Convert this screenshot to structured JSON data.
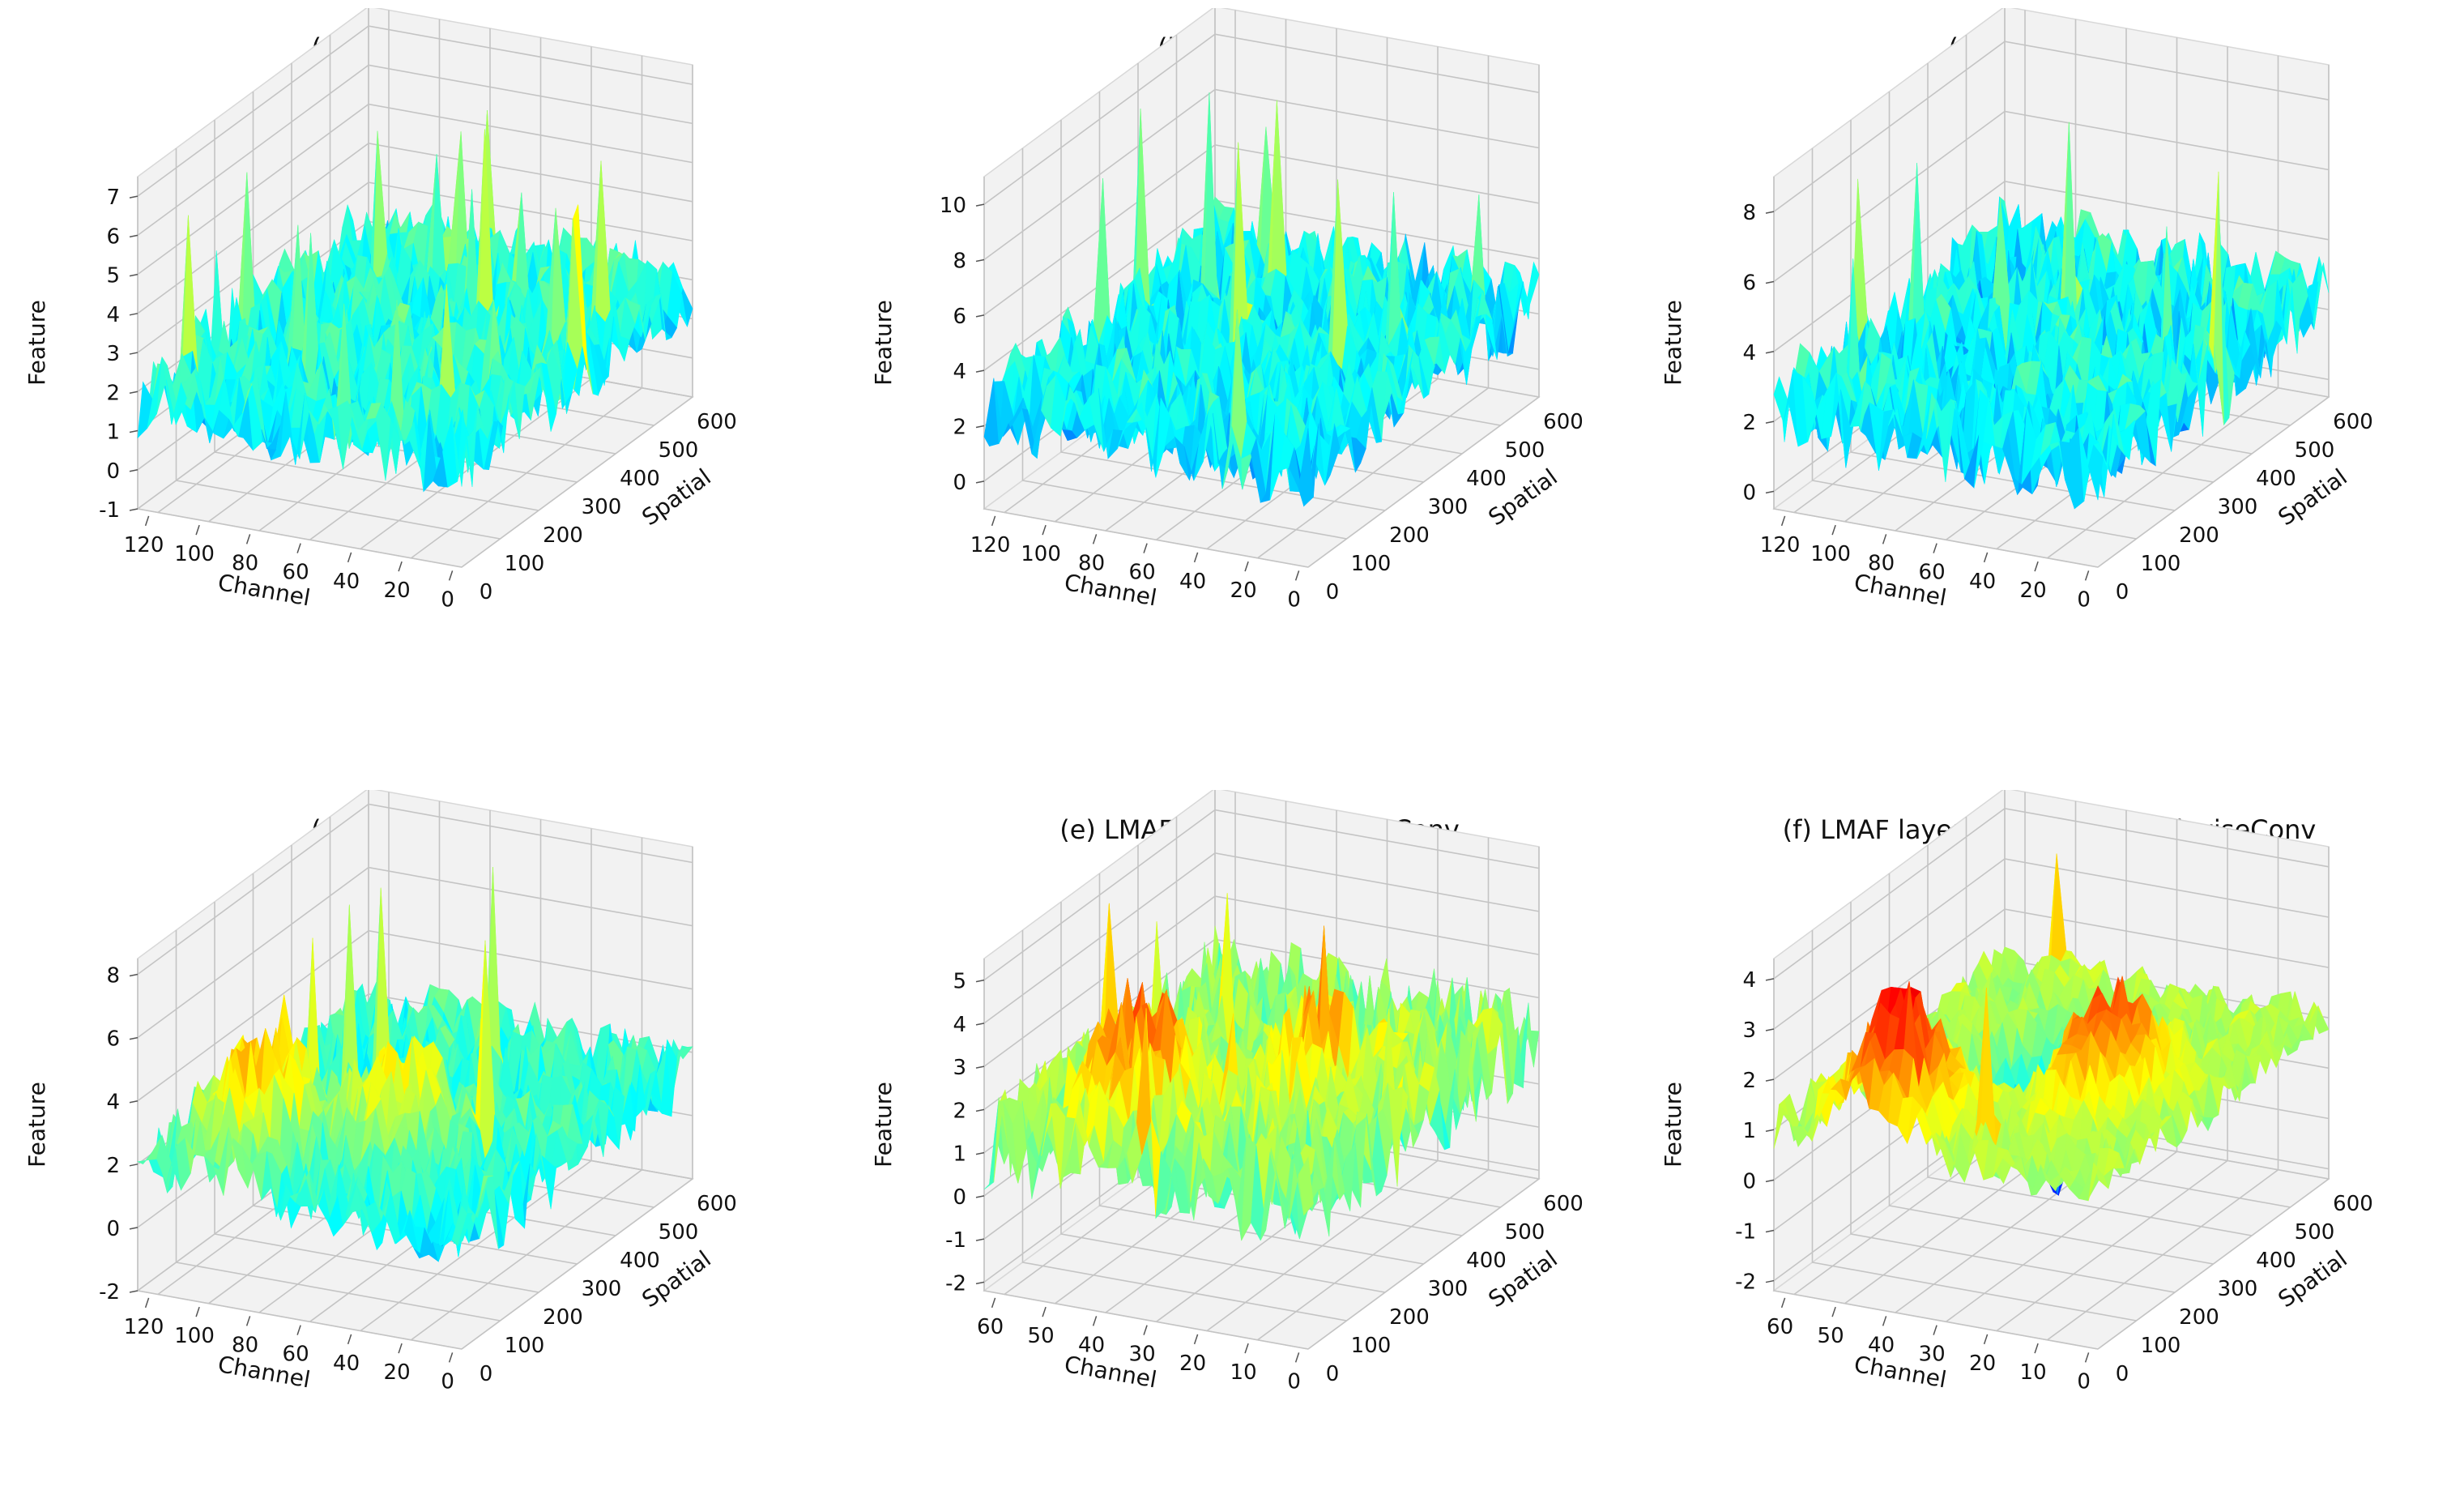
{
  "figure": {
    "colormap": [
      "#00007f",
      "#0000ff",
      "#007fff",
      "#00ffff",
      "#7fff7f",
      "#ffff00",
      "#ff7f00",
      "#ff0000",
      "#7f0000"
    ],
    "pane_color": "#f2f2f2",
    "grid_color": "#c4c4c4"
  },
  "chart_data": [
    {
      "id": "a",
      "type": "surface",
      "title": "(a) LMAF layer1",
      "xlabel": "Channel",
      "ylabel": "Spatial",
      "zlabel": "Feature",
      "x_ticks": [
        "120",
        "100",
        "80",
        "60",
        "40",
        "20",
        "0"
      ],
      "y_ticks": [
        "0",
        "100",
        "200",
        "300",
        "400",
        "500",
        "600"
      ],
      "z_ticks": [
        "-1",
        "0",
        "1",
        "2",
        "3",
        "4",
        "5",
        "6",
        "7"
      ],
      "zlim": [
        -1,
        7.5
      ],
      "x_range": [
        0,
        128
      ],
      "y_range": [
        0,
        600
      ],
      "baseline": 1.8,
      "noise": 1.1,
      "floor": -0.2,
      "spike_max": 7.0,
      "spikes": 20,
      "blobs": []
    },
    {
      "id": "b",
      "type": "surface",
      "title": "(b) LMAF layer2",
      "xlabel": "Channel",
      "ylabel": "Spatial",
      "zlabel": "Feature",
      "x_ticks": [
        "120",
        "100",
        "80",
        "60",
        "40",
        "20",
        "0"
      ],
      "y_ticks": [
        "0",
        "100",
        "200",
        "300",
        "400",
        "500",
        "600"
      ],
      "z_ticks": [
        "0",
        "2",
        "4",
        "6",
        "8",
        "10"
      ],
      "zlim": [
        -1,
        11
      ],
      "x_range": [
        0,
        128
      ],
      "y_range": [
        0,
        600
      ],
      "baseline": 2.6,
      "noise": 1.6,
      "floor": -0.6,
      "spike_max": 10.0,
      "spikes": 10,
      "blobs": []
    },
    {
      "id": "c",
      "type": "surface",
      "title": "(c) LMAF layer3",
      "xlabel": "Channel",
      "ylabel": "Spatial",
      "zlabel": "Feature",
      "x_ticks": [
        "120",
        "100",
        "80",
        "60",
        "40",
        "20",
        "0"
      ],
      "y_ticks": [
        "0",
        "100",
        "200",
        "300",
        "400",
        "500",
        "600"
      ],
      "z_ticks": [
        "0",
        "2",
        "4",
        "6",
        "8"
      ],
      "zlim": [
        -0.5,
        9
      ],
      "x_range": [
        0,
        128
      ],
      "y_range": [
        0,
        600
      ],
      "baseline": 2.3,
      "noise": 1.4,
      "floor": -0.4,
      "spike_max": 8.6,
      "spikes": 8,
      "blobs": []
    },
    {
      "id": "d",
      "type": "surface",
      "title": "(d) LMAF layer4",
      "xlabel": "Channel",
      "ylabel": "Spatial",
      "zlabel": "Feature",
      "x_ticks": [
        "120",
        "100",
        "80",
        "60",
        "40",
        "20",
        "0"
      ],
      "y_ticks": [
        "0",
        "100",
        "200",
        "300",
        "400",
        "500",
        "600"
      ],
      "z_ticks": [
        "-2",
        "0",
        "2",
        "4",
        "6",
        "8"
      ],
      "zlim": [
        -2,
        8.5
      ],
      "x_range": [
        0,
        128
      ],
      "y_range": [
        0,
        600
      ],
      "baseline": 1.6,
      "noise": 1.3,
      "floor": -1.2,
      "spike_max": 8.4,
      "spikes": 6,
      "blobs": [
        {
          "x": 0.78,
          "y": 0.2,
          "h": 3.5
        },
        {
          "x": 0.45,
          "y": 0.35,
          "h": 2.5
        }
      ]
    },
    {
      "id": "e",
      "type": "surface",
      "title": "(e) LMAF layer4 PointwiseConv",
      "xlabel": "Channel",
      "ylabel": "Spatial",
      "zlabel": "Feature",
      "x_ticks": [
        "60",
        "50",
        "40",
        "30",
        "20",
        "10",
        "0"
      ],
      "y_ticks": [
        "0",
        "100",
        "200",
        "300",
        "400",
        "500",
        "600"
      ],
      "z_ticks": [
        "-2",
        "-1",
        "0",
        "1",
        "2",
        "3",
        "4",
        "5"
      ],
      "zlim": [
        -2.2,
        5.5
      ],
      "x_range": [
        0,
        64
      ],
      "y_range": [
        0,
        600
      ],
      "baseline": 1.2,
      "noise": 1.2,
      "floor": -1.8,
      "spike_max": 5.2,
      "spikes": 10,
      "blobs": [
        {
          "x": 0.7,
          "y": 0.25,
          "h": 2.2
        },
        {
          "x": 0.35,
          "y": 0.5,
          "h": 1.6
        }
      ]
    },
    {
      "id": "f",
      "type": "surface",
      "title": "(f) LMAF layer4 DilatationDepthwiseConv",
      "xlabel": "Channel",
      "ylabel": "Spatial",
      "zlabel": "Feature",
      "x_ticks": [
        "60",
        "50",
        "40",
        "30",
        "20",
        "10",
        "0"
      ],
      "y_ticks": [
        "0",
        "100",
        "200",
        "300",
        "400",
        "500",
        "600"
      ],
      "z_ticks": [
        "-2",
        "-1",
        "0",
        "1",
        "2",
        "3",
        "4"
      ],
      "zlim": [
        -2.2,
        4.4
      ],
      "x_range": [
        0,
        64
      ],
      "y_range": [
        0,
        600
      ],
      "baseline": 1.0,
      "noise": 0.5,
      "floor": -1.8,
      "spike_max": 4.1,
      "spikes": 3,
      "blobs": [
        {
          "x": 0.72,
          "y": 0.15,
          "h": 2.4
        },
        {
          "x": 0.3,
          "y": 0.45,
          "h": 2.0
        },
        {
          "x": 0.55,
          "y": 0.6,
          "h": -2.5
        }
      ]
    }
  ]
}
